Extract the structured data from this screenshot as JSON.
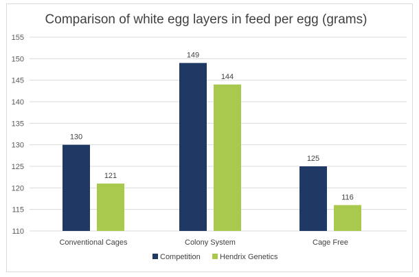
{
  "chart_data": {
    "type": "bar",
    "title": "Comparison of white egg layers in feed per egg (grams)",
    "xlabel": "",
    "ylabel": "",
    "categories": [
      "Conventional Cages",
      "Colony System",
      "Cage Free"
    ],
    "series": [
      {
        "name": "Competition",
        "values": [
          130,
          149,
          125
        ],
        "labels": [
          "130",
          "149",
          "125"
        ],
        "color": "#1f3864"
      },
      {
        "name": "Hendrix Genetics",
        "values": [
          121,
          144,
          116
        ],
        "labels": [
          "121",
          "144",
          "116"
        ],
        "color": "#a9c84e"
      }
    ],
    "ylim": [
      110,
      155
    ],
    "yticks": [
      110,
      115,
      120,
      125,
      130,
      135,
      140,
      145,
      150,
      155
    ],
    "ytick_labels": [
      "110",
      "115",
      "120",
      "125",
      "130",
      "135",
      "140",
      "145",
      "150",
      "155"
    ],
    "grid": true,
    "legend": "bottom-center"
  },
  "colors": {
    "grid": "#d9d9d9",
    "frame": "#d9d9d9"
  }
}
